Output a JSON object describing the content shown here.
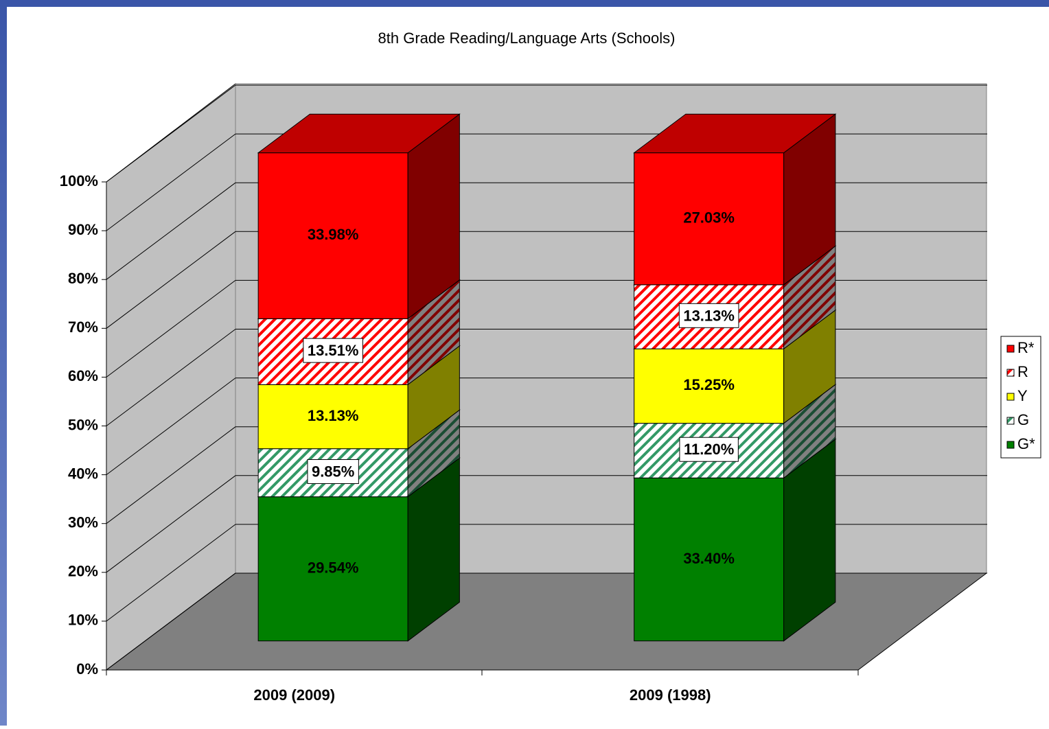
{
  "chart_data": {
    "type": "bar3d_stacked",
    "title": "8th Grade Reading/Language Arts (Schools)",
    "categories": [
      "2009 (2009)",
      "2009 (1998)"
    ],
    "series": [
      {
        "name": "G*",
        "color": "#008000",
        "hatch": false,
        "values": [
          29.54,
          33.4
        ],
        "value_labels": [
          "29.54%",
          "33.40%"
        ]
      },
      {
        "name": "G",
        "color": "#339966",
        "hatch": true,
        "values": [
          9.85,
          11.2
        ],
        "value_labels": [
          "9.85%",
          "11.20%"
        ]
      },
      {
        "name": "Y",
        "color": "#ffff00",
        "hatch": false,
        "values": [
          13.13,
          15.25
        ],
        "value_labels": [
          "13.13%",
          "15.25%"
        ]
      },
      {
        "name": "R",
        "color": "#ff0000",
        "hatch": true,
        "values": [
          13.51,
          13.13
        ],
        "value_labels": [
          "13.51%",
          "13.13%"
        ]
      },
      {
        "name": "R*",
        "color": "#ff0000",
        "hatch": false,
        "values": [
          33.98,
          27.03
        ],
        "value_labels": [
          "33.98%",
          "27.03%"
        ]
      }
    ],
    "ylim": [
      0,
      100
    ],
    "yticks": [
      {
        "value": 0,
        "label": "0%"
      },
      {
        "value": 10,
        "label": "10%"
      },
      {
        "value": 20,
        "label": "20%"
      },
      {
        "value": 30,
        "label": "30%"
      },
      {
        "value": 40,
        "label": "40%"
      },
      {
        "value": 50,
        "label": "50%"
      },
      {
        "value": 60,
        "label": "60%"
      },
      {
        "value": 70,
        "label": "70%"
      },
      {
        "value": 80,
        "label": "80%"
      },
      {
        "value": 90,
        "label": "90%"
      },
      {
        "value": 100,
        "label": "100%"
      }
    ],
    "grid": true,
    "legend": "right"
  }
}
